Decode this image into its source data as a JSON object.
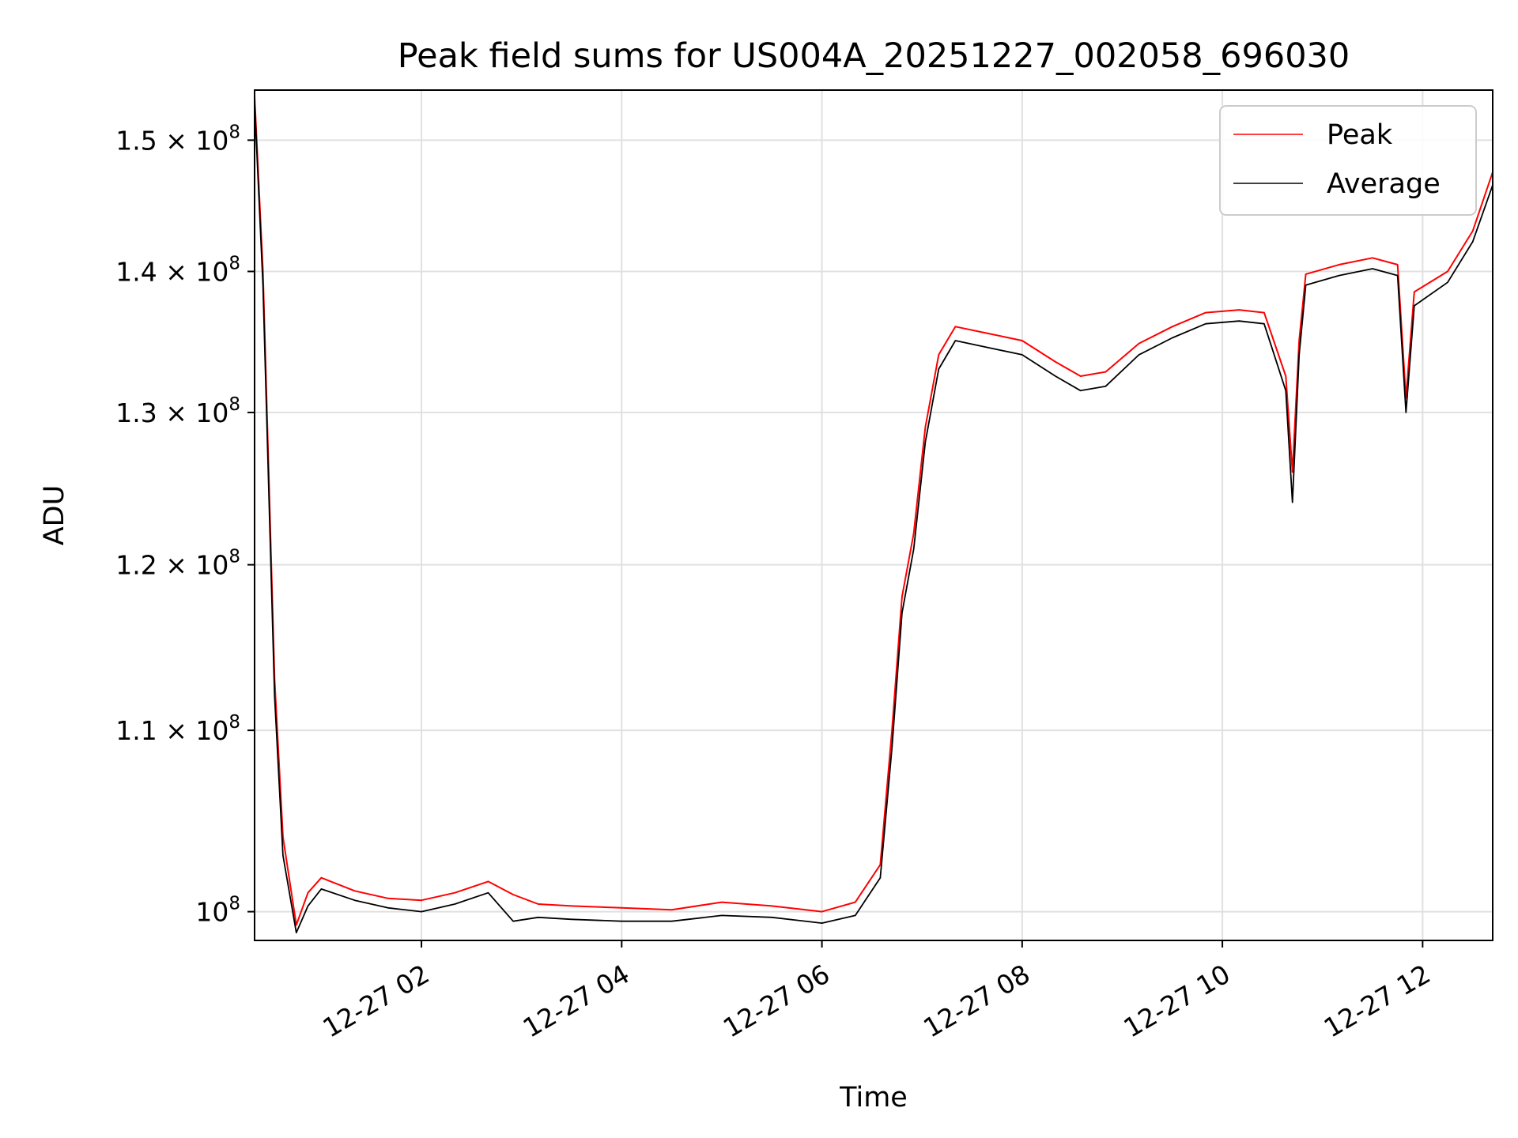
{
  "chart_data": {
    "type": "line",
    "title": "Peak field sums for US004A_20251227_002058_696030",
    "xlabel": "Time",
    "ylabel": "ADU",
    "yscale": "log",
    "xlim": [
      "2025-12-27 00:20",
      "2025-12-27 12:42"
    ],
    "ylim": [
      98500000,
      154000000
    ],
    "x_ticks": [
      {
        "value": "2025-12-27 02:00",
        "label": "12-27 02"
      },
      {
        "value": "2025-12-27 04:00",
        "label": "12-27 04"
      },
      {
        "value": "2025-12-27 06:00",
        "label": "12-27 06"
      },
      {
        "value": "2025-12-27 08:00",
        "label": "12-27 08"
      },
      {
        "value": "2025-12-27 10:00",
        "label": "12-27 10"
      },
      {
        "value": "2025-12-27 12:00",
        "label": "12-27 12"
      }
    ],
    "y_ticks": [
      {
        "value": 100000000,
        "mantissa": "",
        "base": "10",
        "exp": "8"
      },
      {
        "value": 110000000,
        "mantissa": "1.1",
        "base": "10",
        "exp": "8"
      },
      {
        "value": 120000000,
        "mantissa": "1.2",
        "base": "10",
        "exp": "8"
      },
      {
        "value": 130000000,
        "mantissa": "1.3",
        "base": "10",
        "exp": "8"
      },
      {
        "value": 140000000,
        "mantissa": "1.4",
        "base": "10",
        "exp": "8"
      },
      {
        "value": 150000000,
        "mantissa": "1.5",
        "base": "10",
        "exp": "8"
      }
    ],
    "grid": true,
    "legend_position": "top-right",
    "series": [
      {
        "name": "Peak",
        "color": "#ff0000",
        "points": [
          [
            "2025-12-27 00:20",
            153500000
          ],
          [
            "2025-12-27 00:25",
            140000000
          ],
          [
            "2025-12-27 00:32",
            113000000
          ],
          [
            "2025-12-27 00:37",
            104000000
          ],
          [
            "2025-12-27 00:45",
            99300000
          ],
          [
            "2025-12-27 00:52",
            101000000
          ],
          [
            "2025-12-27 01:00",
            101800000
          ],
          [
            "2025-12-27 01:20",
            101100000
          ],
          [
            "2025-12-27 01:40",
            100700000
          ],
          [
            "2025-12-27 02:00",
            100600000
          ],
          [
            "2025-12-27 02:20",
            101000000
          ],
          [
            "2025-12-27 02:40",
            101600000
          ],
          [
            "2025-12-27 02:55",
            100900000
          ],
          [
            "2025-12-27 03:10",
            100400000
          ],
          [
            "2025-12-27 03:30",
            100300000
          ],
          [
            "2025-12-27 04:00",
            100200000
          ],
          [
            "2025-12-27 04:30",
            100100000
          ],
          [
            "2025-12-27 05:00",
            100500000
          ],
          [
            "2025-12-27 05:30",
            100300000
          ],
          [
            "2025-12-27 06:00",
            100000000
          ],
          [
            "2025-12-27 06:20",
            100500000
          ],
          [
            "2025-12-27 06:35",
            102500000
          ],
          [
            "2025-12-27 06:42",
            110000000
          ],
          [
            "2025-12-27 06:48",
            118000000
          ],
          [
            "2025-12-27 06:55",
            122000000
          ],
          [
            "2025-12-27 07:02",
            129000000
          ],
          [
            "2025-12-27 07:10",
            134000000
          ],
          [
            "2025-12-27 07:20",
            136000000
          ],
          [
            "2025-12-27 07:40",
            135500000
          ],
          [
            "2025-12-27 08:00",
            135000000
          ],
          [
            "2025-12-27 08:20",
            133500000
          ],
          [
            "2025-12-27 08:35",
            132500000
          ],
          [
            "2025-12-27 08:50",
            132800000
          ],
          [
            "2025-12-27 09:10",
            134800000
          ],
          [
            "2025-12-27 09:30",
            136000000
          ],
          [
            "2025-12-27 09:50",
            137000000
          ],
          [
            "2025-12-27 10:10",
            137200000
          ],
          [
            "2025-12-27 10:25",
            137000000
          ],
          [
            "2025-12-27 10:38",
            132500000
          ],
          [
            "2025-12-27 10:42",
            126000000
          ],
          [
            "2025-12-27 10:46",
            135000000
          ],
          [
            "2025-12-27 10:50",
            139800000
          ],
          [
            "2025-12-27 11:10",
            140500000
          ],
          [
            "2025-12-27 11:30",
            141000000
          ],
          [
            "2025-12-27 11:45",
            140500000
          ],
          [
            "2025-12-27 11:50",
            131000000
          ],
          [
            "2025-12-27 11:55",
            138500000
          ],
          [
            "2025-12-27 12:15",
            140000000
          ],
          [
            "2025-12-27 12:30",
            143000000
          ],
          [
            "2025-12-27 12:42",
            147500000
          ]
        ]
      },
      {
        "name": "Average",
        "color": "#000000",
        "points": [
          [
            "2025-12-27 00:20",
            153000000
          ],
          [
            "2025-12-27 00:25",
            139000000
          ],
          [
            "2025-12-27 00:32",
            112000000
          ],
          [
            "2025-12-27 00:37",
            103000000
          ],
          [
            "2025-12-27 00:45",
            98900000
          ],
          [
            "2025-12-27 00:52",
            100300000
          ],
          [
            "2025-12-27 01:00",
            101200000
          ],
          [
            "2025-12-27 01:20",
            100600000
          ],
          [
            "2025-12-27 01:40",
            100200000
          ],
          [
            "2025-12-27 02:00",
            100000000
          ],
          [
            "2025-12-27 02:20",
            100400000
          ],
          [
            "2025-12-27 02:40",
            101000000
          ],
          [
            "2025-12-27 02:55",
            99500000
          ],
          [
            "2025-12-27 03:10",
            99700000
          ],
          [
            "2025-12-27 03:30",
            99600000
          ],
          [
            "2025-12-27 04:00",
            99500000
          ],
          [
            "2025-12-27 04:30",
            99500000
          ],
          [
            "2025-12-27 05:00",
            99800000
          ],
          [
            "2025-12-27 05:30",
            99700000
          ],
          [
            "2025-12-27 06:00",
            99400000
          ],
          [
            "2025-12-27 06:20",
            99800000
          ],
          [
            "2025-12-27 06:35",
            101800000
          ],
          [
            "2025-12-27 06:42",
            109000000
          ],
          [
            "2025-12-27 06:48",
            117000000
          ],
          [
            "2025-12-27 06:55",
            121000000
          ],
          [
            "2025-12-27 07:02",
            128000000
          ],
          [
            "2025-12-27 07:10",
            133000000
          ],
          [
            "2025-12-27 07:20",
            135000000
          ],
          [
            "2025-12-27 07:40",
            134500000
          ],
          [
            "2025-12-27 08:00",
            134000000
          ],
          [
            "2025-12-27 08:20",
            132500000
          ],
          [
            "2025-12-27 08:35",
            131500000
          ],
          [
            "2025-12-27 08:50",
            131800000
          ],
          [
            "2025-12-27 09:10",
            134000000
          ],
          [
            "2025-12-27 09:30",
            135200000
          ],
          [
            "2025-12-27 09:50",
            136200000
          ],
          [
            "2025-12-27 10:10",
            136400000
          ],
          [
            "2025-12-27 10:25",
            136200000
          ],
          [
            "2025-12-27 10:38",
            131500000
          ],
          [
            "2025-12-27 10:42",
            124000000
          ],
          [
            "2025-12-27 10:46",
            134000000
          ],
          [
            "2025-12-27 10:50",
            139000000
          ],
          [
            "2025-12-27 11:10",
            139700000
          ],
          [
            "2025-12-27 11:30",
            140200000
          ],
          [
            "2025-12-27 11:45",
            139700000
          ],
          [
            "2025-12-27 11:50",
            130000000
          ],
          [
            "2025-12-27 11:55",
            137500000
          ],
          [
            "2025-12-27 12:15",
            139200000
          ],
          [
            "2025-12-27 12:30",
            142200000
          ],
          [
            "2025-12-27 12:42",
            146500000
          ]
        ]
      }
    ]
  }
}
